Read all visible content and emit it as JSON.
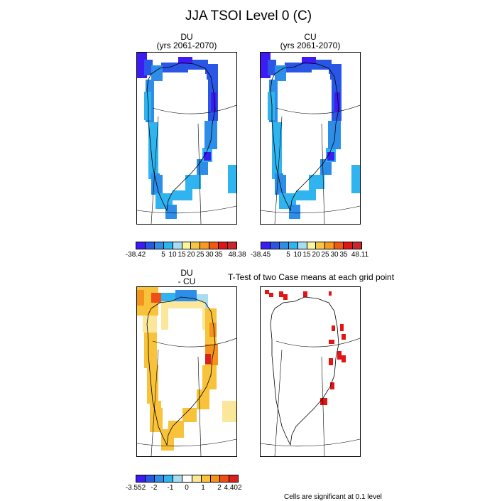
{
  "figure": {
    "title": "JJA TSOI Level 0 (C)",
    "note": "Cells are significant at 0.1 level"
  },
  "panels": {
    "du": {
      "title_line1": "DU",
      "title_line2": "(yrs 2061-2070)"
    },
    "cu": {
      "title_line1": "CU",
      "title_line2": "(yrs 2061-2070)"
    },
    "diff": {
      "title_line1": "DU",
      "title_line2": "- CU"
    },
    "ttest": {
      "title": "T-Test of two Case means at each grid point"
    }
  },
  "colorbars": {
    "du": {
      "colors": [
        "#3c1cf2",
        "#2a56e6",
        "#2c8ee8",
        "#2fb4f0",
        "#a8dcf2",
        "#fbf59c",
        "#f7c544",
        "#f79a1e",
        "#ee5a12",
        "#e51414",
        "#c8282a"
      ],
      "labels": [
        "-38.42",
        "5",
        "10",
        "15",
        "20",
        "25",
        "30",
        "35",
        "48.38"
      ]
    },
    "cu": {
      "colors": [
        "#3c1cf2",
        "#2a56e6",
        "#2c8ee8",
        "#2fb4f0",
        "#a8dcf2",
        "#fbf59c",
        "#f7c544",
        "#f79a1e",
        "#ee5a12",
        "#e51414",
        "#c8282a"
      ],
      "labels": [
        "-38.45",
        "5",
        "10",
        "15",
        "20",
        "25",
        "30",
        "35",
        "48.11"
      ]
    },
    "diff": {
      "colors": [
        "#3c1cf2",
        "#2a56e6",
        "#2c8ee8",
        "#2fb4f0",
        "#a8dcf2",
        "#ffffff",
        "#fbe79a",
        "#f8c23a",
        "#f4931c",
        "#ee4f16",
        "#d8201c"
      ],
      "labels": [
        "-3.552",
        "-2",
        "-1",
        "0",
        "1",
        "2",
        "4.402"
      ]
    }
  }
}
